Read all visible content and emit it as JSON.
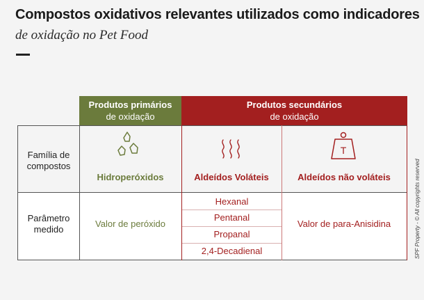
{
  "title": "Compostos oxidativos relevantes utilizados como indicadores",
  "subtitle": "de oxidação no Pet Food",
  "credit": "SPF Property - © All copyrights reserved",
  "colors": {
    "primary": "#6b7b3c",
    "secondary": "#a31f1f"
  },
  "headers": {
    "primary": {
      "line1": "Produtos primários",
      "line2": "de oxidação"
    },
    "secondary": {
      "line1": "Produtos secundários",
      "line2": "de oxidação"
    }
  },
  "rows": {
    "family_label_line1": "Família de",
    "family_label_line2": "compostos",
    "param_label_line1": "Parâmetro",
    "param_label_line2": "medido"
  },
  "families": {
    "hydro": {
      "name": "Hidroperóxidos",
      "icon": "droplets-icon"
    },
    "volatile": {
      "name": "Aldeídos Voláteis",
      "icon": "vapor-icon"
    },
    "nonvolatile": {
      "name": "Aldeídos não voláteis",
      "icon": "weight-icon",
      "icon_letter": "T"
    }
  },
  "params": {
    "hydro": "Valor de peróxido",
    "volatile_list": [
      "Hexanal",
      "Pentanal",
      "Propanal",
      "2,4-Decadienal"
    ],
    "nonvolatile": "Valor de para-Anisidina"
  }
}
